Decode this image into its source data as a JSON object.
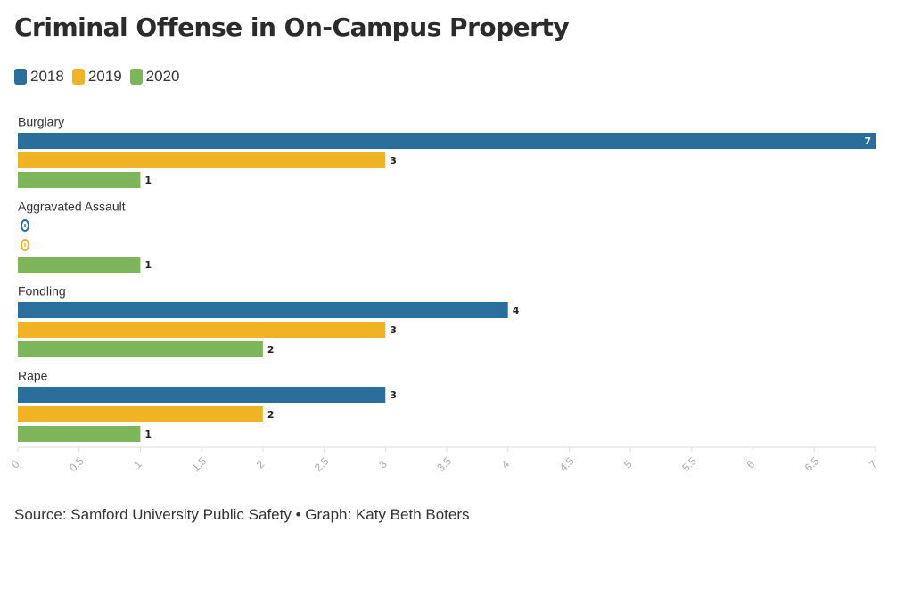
{
  "title": "Criminal Offense in On-Campus Property",
  "legend": [
    {
      "label": "2018",
      "color": "#2a6f9b"
    },
    {
      "label": "2019",
      "color": "#f0b323"
    },
    {
      "label": "2020",
      "color": "#7db55b"
    }
  ],
  "source": "Source: Samford University Public Safety • Graph: Katy Beth Boters",
  "chart_data": {
    "type": "bar",
    "orientation": "horizontal",
    "categories": [
      "Burglary",
      "Aggravated Assault",
      "Fondling",
      "Rape"
    ],
    "series": [
      {
        "name": "2018",
        "values": [
          7,
          0,
          4,
          3
        ],
        "color": "#2a6f9b"
      },
      {
        "name": "2019",
        "values": [
          3,
          0,
          3,
          2
        ],
        "color": "#f0b323"
      },
      {
        "name": "2020",
        "values": [
          1,
          1,
          2,
          1
        ],
        "color": "#7db55b"
      }
    ],
    "xlim": [
      0,
      7
    ],
    "xticks": [
      "0",
      "0.5",
      "1",
      "1.5",
      "2",
      "2.5",
      "3",
      "3.5",
      "4",
      "4.5",
      "5",
      "5.5",
      "6",
      "6.5",
      "7"
    ],
    "grid": false,
    "legend_position": "top-left",
    "title": "Criminal Offense in On-Campus Property",
    "xlabel": "",
    "ylabel": ""
  }
}
